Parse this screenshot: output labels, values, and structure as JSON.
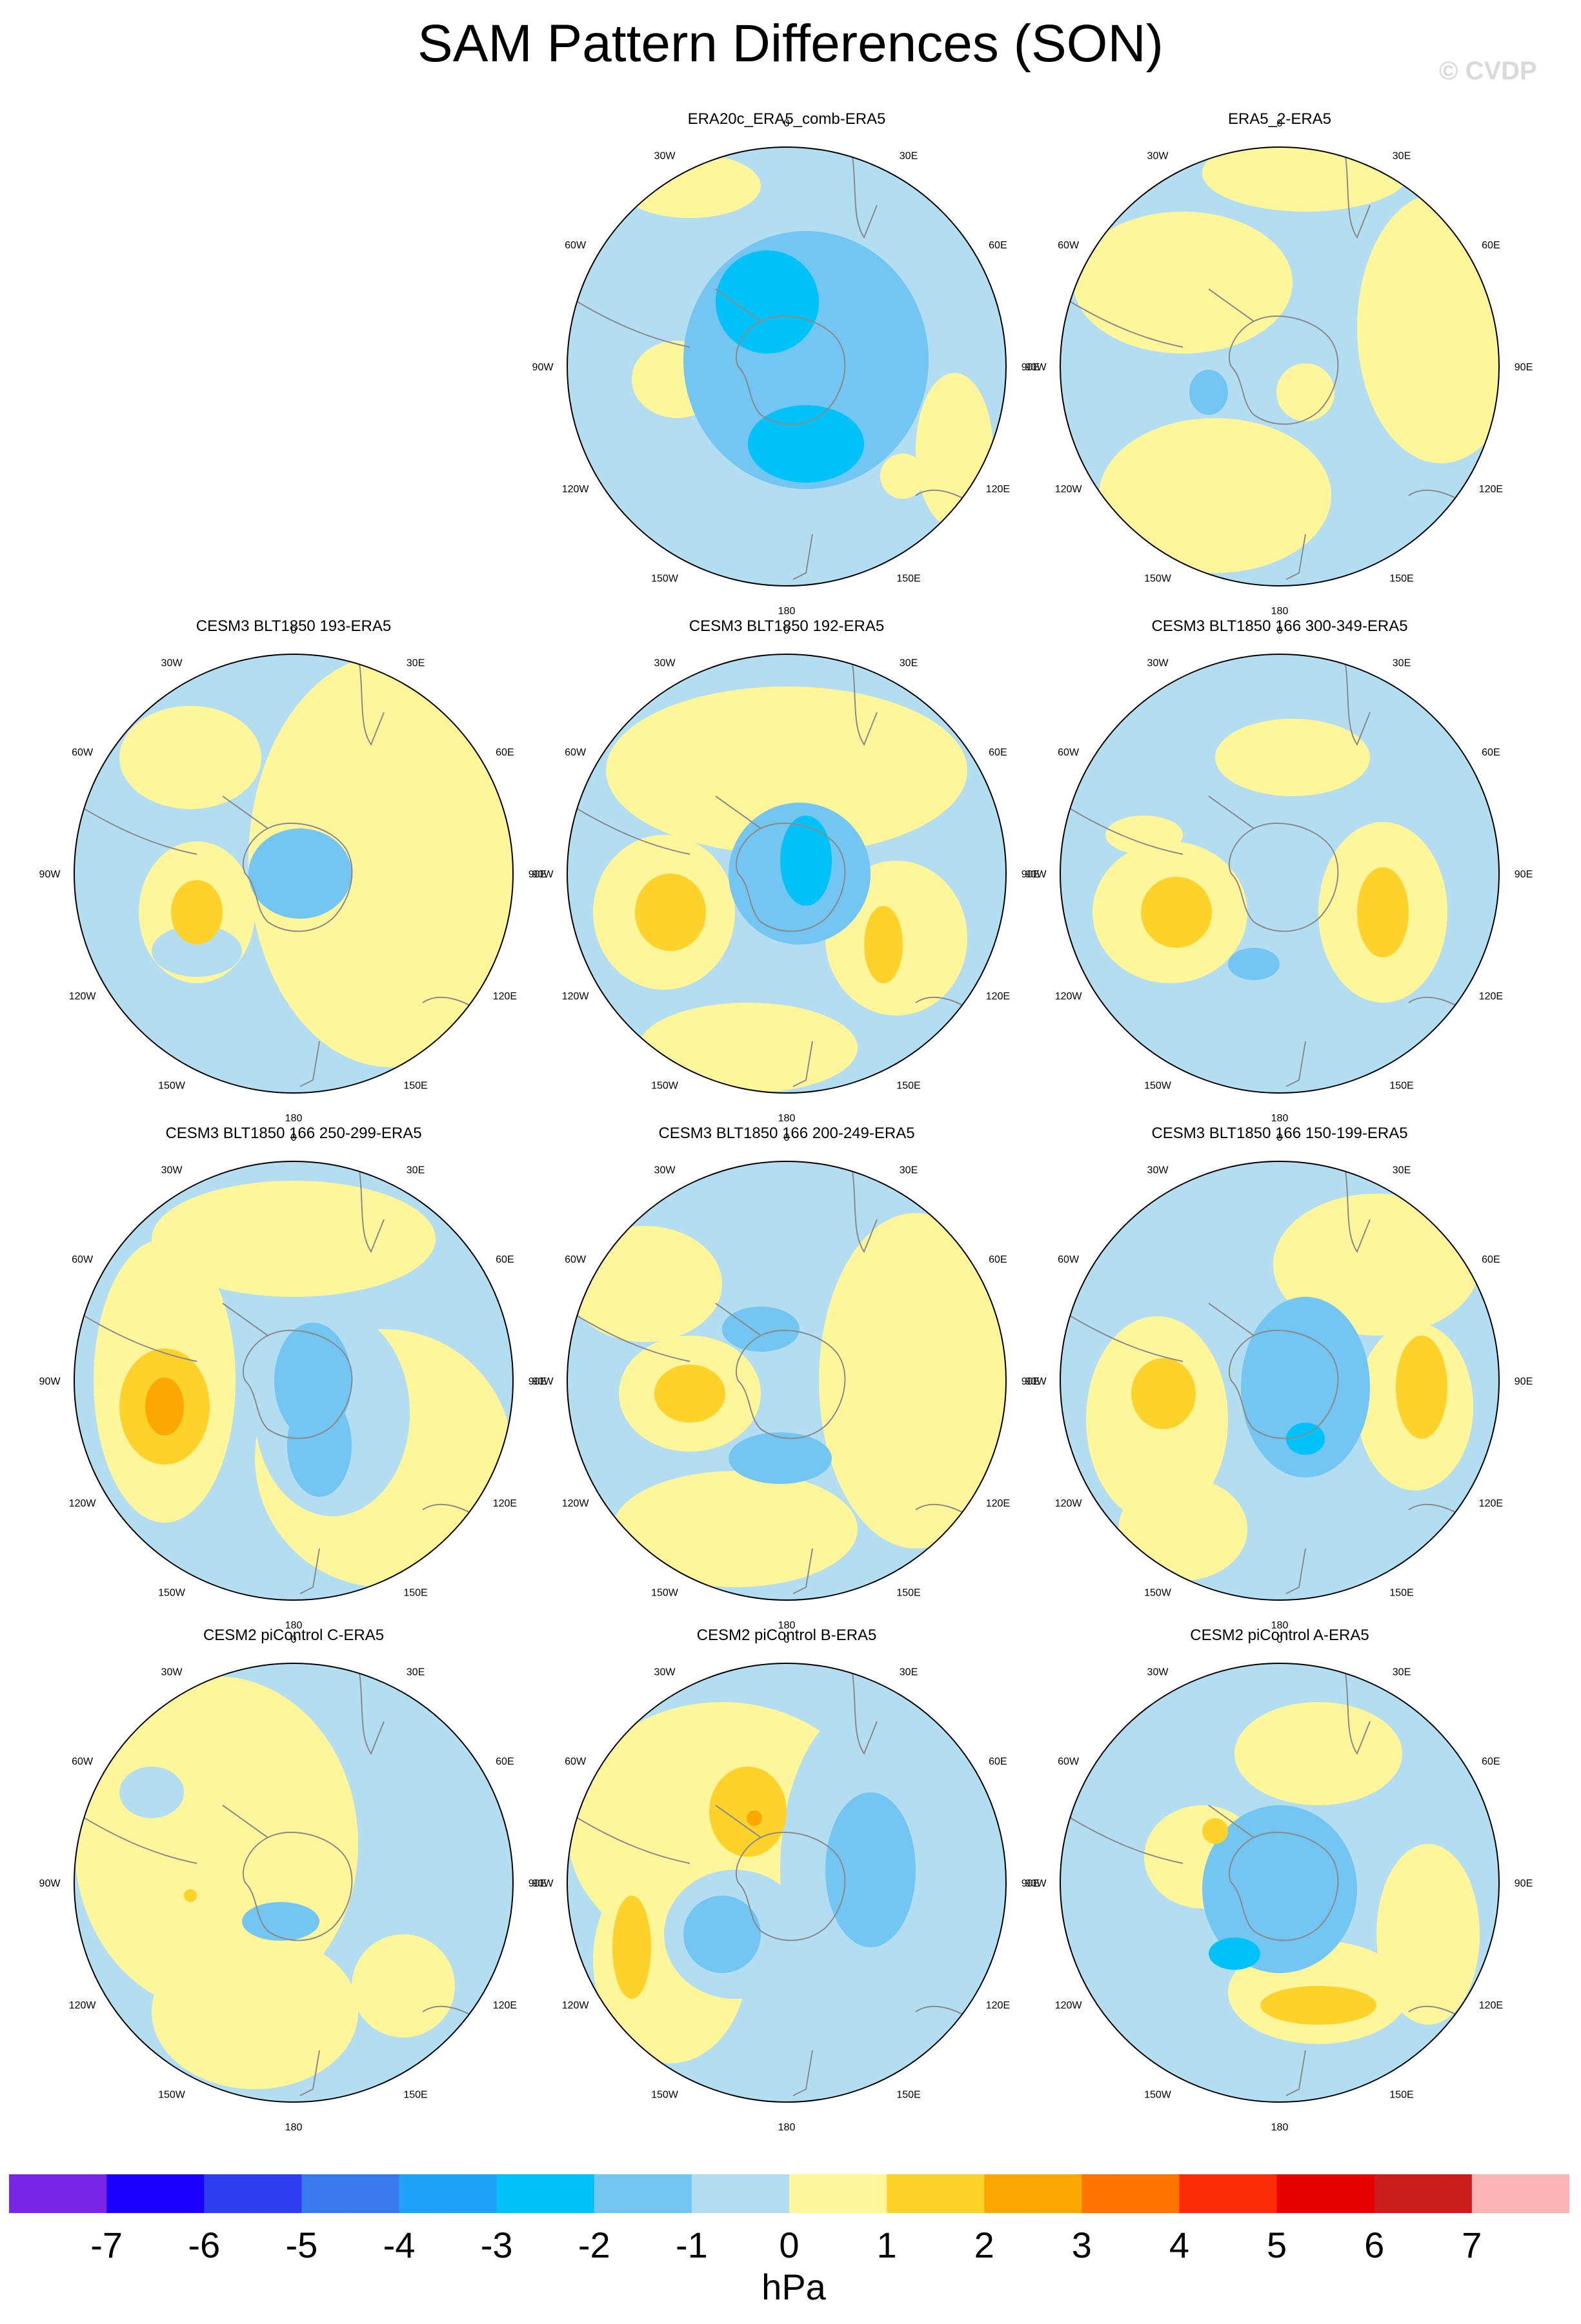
{
  "title": "SAM Pattern Differences (SON)",
  "watermark": "© CVDP",
  "colors": {
    "neg2": "#73c5f2",
    "neg1": "#b3ddf1",
    "pos1": "#fff59a",
    "pos2": "#fdd32b",
    "pos3": "#fda802",
    "neg3": "#00c2f9",
    "coast": "#8a8a8a",
    "border": "#000000"
  },
  "lon_labels": [
    "0",
    "30E",
    "60E",
    "90E",
    "120E",
    "150E",
    "180",
    "150W",
    "120W",
    "90W",
    "60W",
    "30W"
  ],
  "panels": [
    {
      "title": "ERA20c_ERA5_comb-ERA5",
      "row": 0,
      "col": 1
    },
    {
      "title": "ERA5_2-ERA5",
      "row": 0,
      "col": 2
    },
    {
      "title": "CESM3 BLT1850 193-ERA5",
      "row": 1,
      "col": 0
    },
    {
      "title": "CESM3 BLT1850 192-ERA5",
      "row": 1,
      "col": 1
    },
    {
      "title": "CESM3 BLT1850 166 300-349-ERA5",
      "row": 1,
      "col": 2
    },
    {
      "title": "CESM3 BLT1850 166 250-299-ERA5",
      "row": 2,
      "col": 0
    },
    {
      "title": "CESM3 BLT1850 166 200-249-ERA5",
      "row": 2,
      "col": 1
    },
    {
      "title": "CESM3 BLT1850 166 150-199-ERA5",
      "row": 2,
      "col": 2
    },
    {
      "title": "CESM2 piControl C-ERA5",
      "row": 3,
      "col": 0
    },
    {
      "title": "CESM2 piControl B-ERA5",
      "row": 3,
      "col": 1
    },
    {
      "title": "CESM2 piControl A-ERA5",
      "row": 3,
      "col": 2
    }
  ],
  "colorbar": {
    "colors": [
      "#7b25e8",
      "#1a00ff",
      "#2f3df0",
      "#3a78ed",
      "#1ea2f7",
      "#00c2f9",
      "#73c5f2",
      "#b3ddf1",
      "#fff59a",
      "#fdd32b",
      "#fda802",
      "#fd7402",
      "#fb2c06",
      "#e60000",
      "#cc1d1d",
      "#fdb4b4"
    ],
    "labels": [
      "-7",
      "-6",
      "-5",
      "-4",
      "-3",
      "-2",
      "-1",
      "0",
      "1",
      "2",
      "3",
      "4",
      "5",
      "6",
      "7"
    ],
    "units": "hPa"
  }
}
